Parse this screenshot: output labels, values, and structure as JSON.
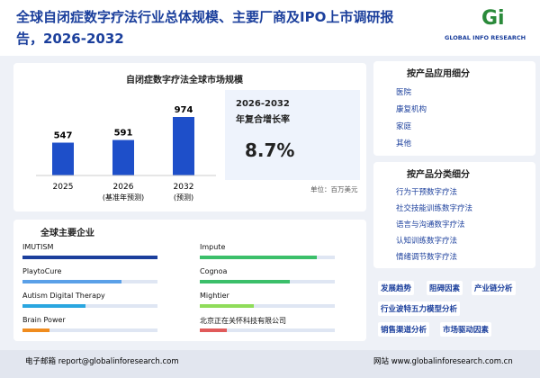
{
  "header": {
    "title_line1": "全球自闭症数字疗法行业总体规模、主要厂商及IPO上市调研报",
    "title_line2": "告，2026-2032",
    "logo": "GLOBAL INFO RESEARCH"
  },
  "market_chart": {
    "type": "bar",
    "title": "自闭症数字疗法全球市场规模",
    "categories": [
      "2025",
      "2026",
      "2032"
    ],
    "sublabels": [
      null,
      "(基准年预测)",
      "(预测)"
    ],
    "values": [
      547,
      591,
      974
    ],
    "color": "#1e4fc9",
    "unit": "单位：百万美元"
  },
  "cagr": {
    "period": "2026-2032",
    "label": "年复合增长率",
    "value": "8.7%"
  },
  "companies": {
    "title": "全球主要企业",
    "names": [
      "IMUTISM",
      "Impute",
      "PlaytoCure",
      "Cognoa",
      "Autism Digital Therapy",
      "Mightier",
      "Brain Power",
      "北京正在关怀科技有限公司"
    ]
  },
  "application": {
    "title": "按产品应用细分",
    "items": [
      "医院",
      "康复机构",
      "家庭",
      "其他"
    ]
  },
  "product": {
    "title": "按产品分类细分",
    "items": [
      "行为干预数字疗法",
      "社交技能训练数字疗法",
      "语言与沟通数字疗法",
      "认知训练数字疗法",
      "情绪调节数字疗法"
    ]
  },
  "tags": [
    "发展趋势",
    "阻碍因素",
    "产业链分析",
    "行业波特五力模型分析",
    "销售渠道分析",
    "市场驱动因素"
  ],
  "footer": {
    "email": "电子邮箱 report@globalinforesearch.com",
    "website": "网站 www.globalinforesearch.com.cn"
  }
}
